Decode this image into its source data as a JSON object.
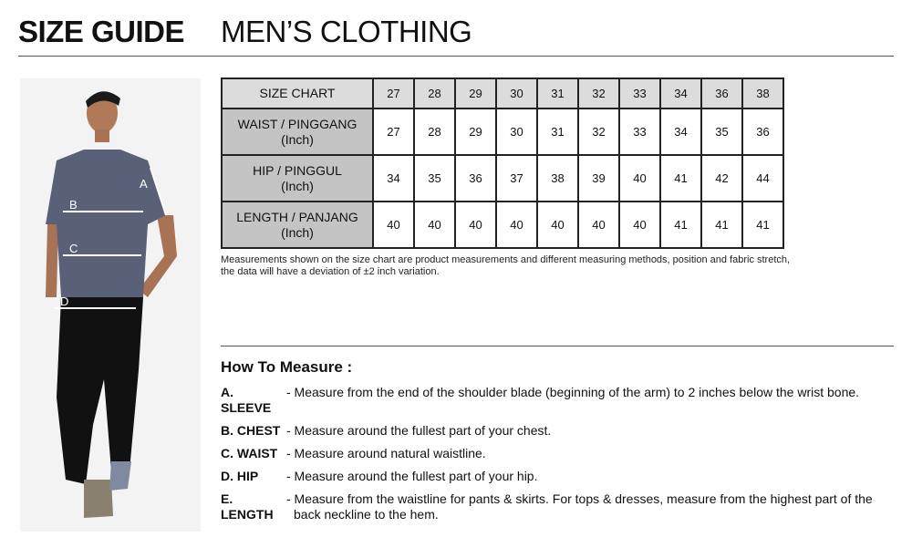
{
  "header": {
    "title_bold": "SIZE GUIDE",
    "title": "MEN’S CLOTHING"
  },
  "figure": {
    "labels": [
      "A",
      "B",
      "C",
      "D"
    ]
  },
  "table": {
    "header": "SIZE CHART",
    "sizes": [
      "27",
      "28",
      "29",
      "30",
      "31",
      "32",
      "33",
      "34",
      "36",
      "38"
    ],
    "rows": [
      {
        "label": "WAIST / PINGGANG",
        "unit": "(Inch)",
        "values": [
          "27",
          "28",
          "29",
          "30",
          "31",
          "32",
          "33",
          "34",
          "35",
          "36"
        ]
      },
      {
        "label": "HIP / PINGGUL",
        "unit": "(Inch)",
        "values": [
          "34",
          "35",
          "36",
          "37",
          "38",
          "39",
          "40",
          "41",
          "42",
          "44"
        ]
      },
      {
        "label": "LENGTH / PANJANG",
        "unit": "(Inch)",
        "values": [
          "40",
          "40",
          "40",
          "40",
          "40",
          "40",
          "40",
          "41",
          "41",
          "41"
        ]
      }
    ]
  },
  "note": "Measurements shown on the size chart are product measurements and different measuring methods, position and fabric stretch, the data will have a deviation of ±2 inch variation.",
  "how": {
    "title": "How To Measure :",
    "items": [
      {
        "label": "A. SLEEVE",
        "desc": "- Measure from the end of the shoulder blade (beginning of the arm) to 2 inches below the wrist bone."
      },
      {
        "label": "B. CHEST",
        "desc": "- Measure around the fullest part of your chest."
      },
      {
        "label": "C. WAIST",
        "desc": "- Measure around natural waistline."
      },
      {
        "label": "D. HIP",
        "desc": "- Measure around the fullest part of your hip."
      },
      {
        "label": "E. LENGTH",
        "desc": "- Measure from the waistline for pants & skirts. For tops & dresses, measure from the highest part of the back neckline to the hem."
      }
    ]
  }
}
